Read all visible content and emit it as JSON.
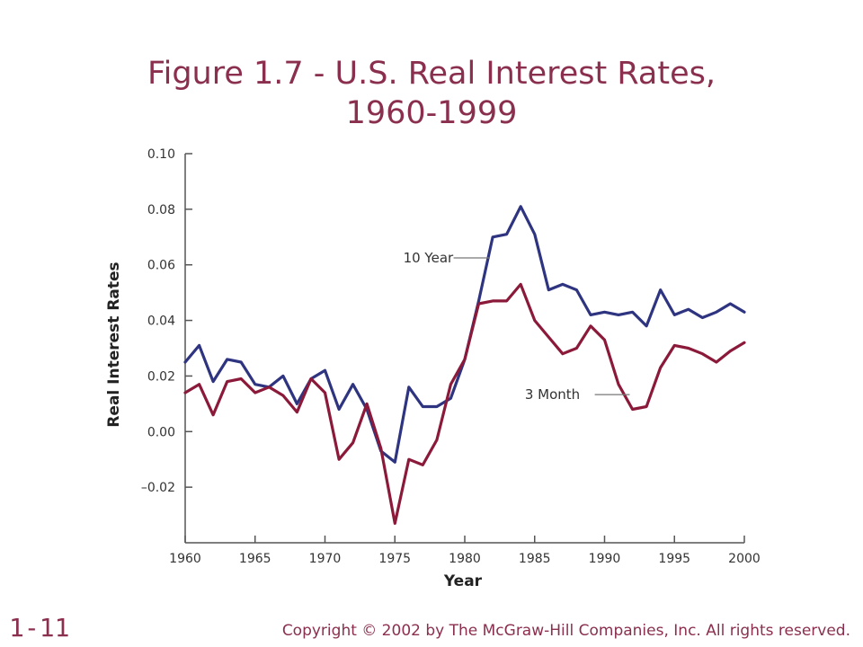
{
  "slide": {
    "title_line1": "Figure 1.7 - U.S. Real Interest Rates,",
    "title_line2": "1960-1999",
    "slide_number": "1-11",
    "copyright": "Copyright © 2002 by The McGraw-Hill Companies, Inc.  All rights reserved."
  },
  "chart_data": {
    "type": "line",
    "xlabel": "Year",
    "ylabel": "Real Interest Rates",
    "xlim": [
      1960,
      2000
    ],
    "ylim": [
      -0.04,
      0.1
    ],
    "x_ticks": [
      1960,
      1965,
      1970,
      1975,
      1980,
      1985,
      1990,
      1995,
      2000
    ],
    "x_tick_labels": [
      "1960",
      "1965",
      "1970",
      "1975",
      "1980",
      "1985",
      "1990",
      "1995",
      "2000"
    ],
    "y_ticks": [
      -0.02,
      0.0,
      0.02,
      0.04,
      0.06,
      0.08,
      0.1
    ],
    "y_tick_labels": [
      "–0.02",
      "0.00",
      "0.02",
      "0.04",
      "0.06",
      "0.08",
      "0.10"
    ],
    "grid": false,
    "x": [
      1960,
      1961,
      1962,
      1963,
      1964,
      1965,
      1966,
      1967,
      1968,
      1969,
      1970,
      1971,
      1972,
      1973,
      1974,
      1975,
      1976,
      1977,
      1978,
      1979,
      1980,
      1981,
      1982,
      1983,
      1984,
      1985,
      1986,
      1987,
      1988,
      1989,
      1990,
      1991,
      1992,
      1993,
      1994,
      1995,
      1996,
      1997,
      1998,
      1999,
      2000
    ],
    "series": [
      {
        "name": "10 Year",
        "color": "#2e3480",
        "values": [
          0.025,
          0.031,
          0.018,
          0.026,
          0.025,
          0.017,
          0.016,
          0.02,
          0.01,
          0.019,
          0.022,
          0.008,
          0.017,
          0.008,
          -0.007,
          -0.011,
          0.016,
          0.009,
          0.009,
          0.012,
          0.026,
          0.047,
          0.07,
          0.071,
          0.081,
          0.071,
          0.051,
          0.053,
          0.051,
          0.042,
          0.043,
          0.042,
          0.043,
          0.038,
          0.051,
          0.042,
          0.044,
          0.041,
          0.043,
          0.046,
          0.043
        ],
        "label_x": 1975.5,
        "label_y": 0.0625,
        "pointer_to": [
          1982,
          0.0625
        ]
      },
      {
        "name": "3 Month",
        "color": "#8b1a3a",
        "values": [
          0.014,
          0.017,
          0.006,
          0.018,
          0.019,
          0.014,
          0.016,
          0.013,
          0.007,
          0.019,
          0.014,
          -0.01,
          -0.004,
          0.01,
          -0.006,
          -0.033,
          -0.01,
          -0.012,
          -0.003,
          0.017,
          0.026,
          0.046,
          0.047,
          0.047,
          0.053,
          0.04,
          0.034,
          0.028,
          0.03,
          0.038,
          0.033,
          0.017,
          0.008,
          0.009,
          0.023,
          0.031,
          0.03,
          0.028,
          0.025,
          0.029,
          0.032
        ]
      }
    ],
    "annotations": [
      {
        "text": "10 Year",
        "series": "10 Year"
      },
      {
        "text": "3 Month",
        "series": "3 Month"
      }
    ]
  }
}
